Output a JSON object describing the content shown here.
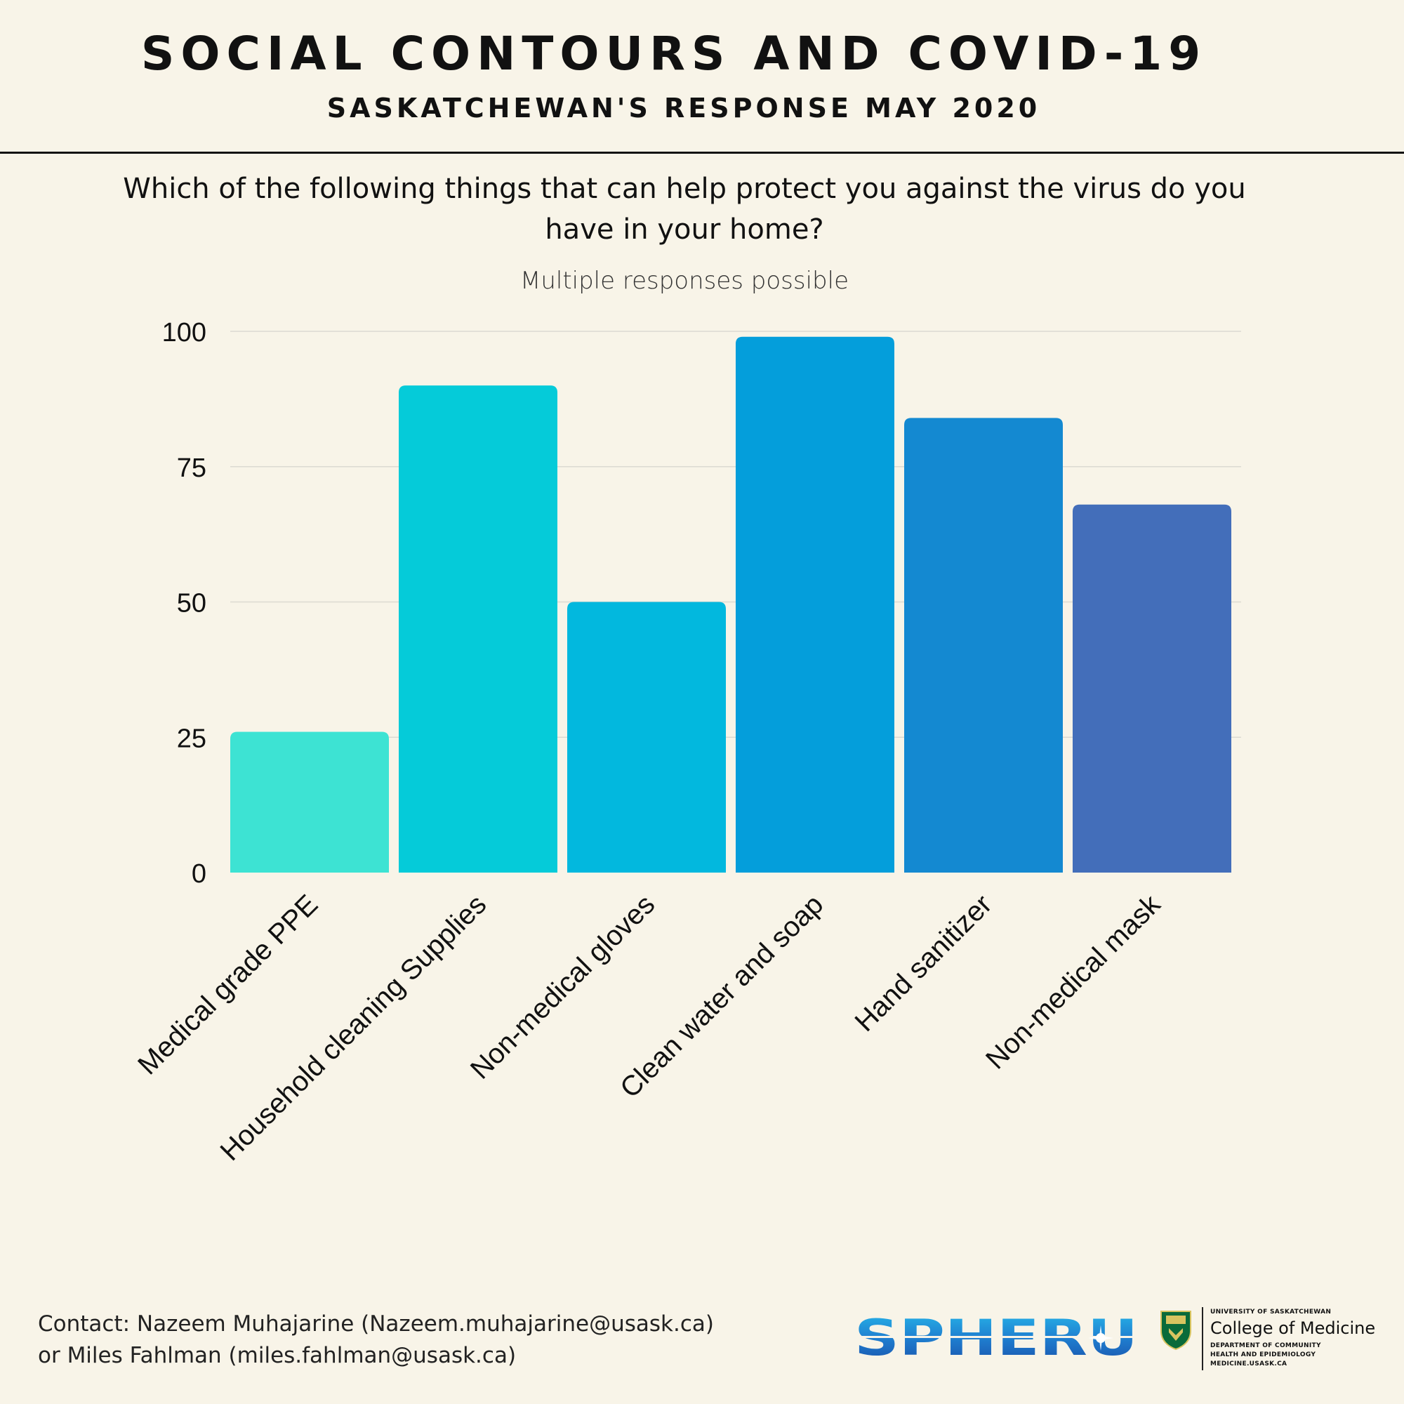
{
  "header": {
    "title": "SOCIAL CONTOURS AND COVID-19",
    "subtitle": "SASKATCHEWAN'S RESPONSE MAY 2020"
  },
  "question": "Which of the following things that can help protect you against the virus do you have in your home?",
  "note": "Multiple responses possible",
  "chart_data": {
    "type": "bar",
    "title": "Which of the following things that can help protect you against the virus do you have in your home?",
    "subtitle": "Multiple responses possible",
    "categories": [
      "Medical grade PPE",
      "Household cleaning Supplies",
      "Non-medical gloves",
      "Clean water and soap",
      "Hand sanitizer",
      "Non-medical mask"
    ],
    "values": [
      26,
      90,
      50,
      99,
      84,
      68
    ],
    "colors": [
      "#3de3d3",
      "#05cbd9",
      "#02b8de",
      "#049edb",
      "#1489d1",
      "#436eba"
    ],
    "ylim": [
      0,
      100
    ],
    "yticks": [
      0,
      25,
      50,
      75,
      100
    ],
    "xlabel": "",
    "ylabel": "",
    "grid": true
  },
  "footer": {
    "contact_line1": "Contact: Nazeem Muhajarine (Nazeem.muhajarine@usask.ca)",
    "contact_line2": "or Miles Fahlman (miles.fahlman@usask.ca)"
  },
  "logos": {
    "spheru_text": "SPHERU",
    "usask_university": "UNIVERSITY OF SASKATCHEWAN",
    "usask_college": "College of Medicine",
    "usask_dept_line1": "DEPARTMENT OF COMMUNITY",
    "usask_dept_line2": "HEALTH AND EPIDEMIOLOGY",
    "usask_url": "MEDICINE.USASK.CA"
  }
}
